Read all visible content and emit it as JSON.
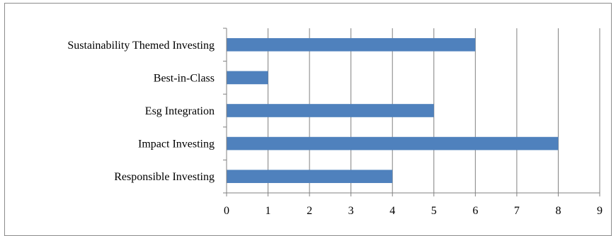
{
  "chart_data": {
    "type": "bar",
    "orientation": "horizontal",
    "title": "",
    "xlabel": "",
    "ylabel": "",
    "categories": [
      "Responsible Investing",
      "Impact Investing",
      "Esg Integration",
      "Best-in-Class",
      "Sustainability Themed Investing"
    ],
    "values": [
      4,
      8,
      5,
      1,
      6
    ],
    "xlim": [
      0,
      9
    ],
    "xticks": [
      "0",
      "1",
      "2",
      "3",
      "4",
      "5",
      "6",
      "7",
      "8",
      "9"
    ],
    "grid": "vertical",
    "legend": "none",
    "colors": {
      "bar": "#4f81bd",
      "grid": "#808080",
      "axis": "#808080",
      "frame": "#8c8c8c"
    }
  }
}
